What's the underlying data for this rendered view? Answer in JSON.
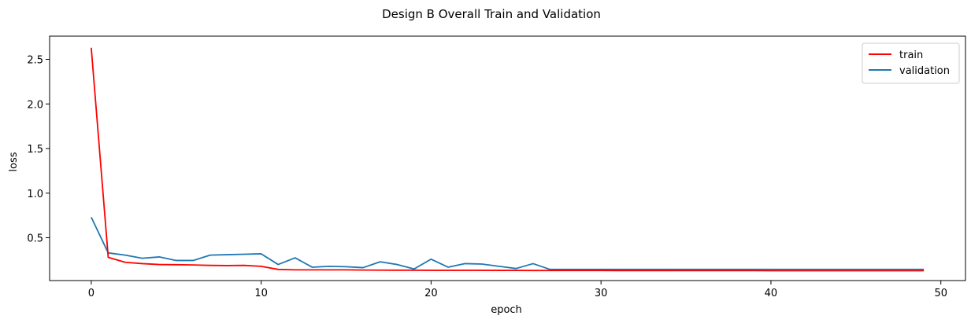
{
  "chart_data": {
    "type": "line",
    "title": "Design B Overall Train and Validation",
    "xlabel": "epoch",
    "ylabel": "loss",
    "xlim": [
      -2.45,
      51.45
    ],
    "ylim": [
      0.02,
      2.76
    ],
    "xticks": [
      0,
      10,
      20,
      30,
      40,
      50
    ],
    "yticks": [
      0.5,
      1.0,
      1.5,
      2.0,
      2.5
    ],
    "xtick_labels": [
      "0",
      "10",
      "20",
      "30",
      "40",
      "50"
    ],
    "ytick_labels": [
      "0.5",
      "1.0",
      "1.5",
      "2.0",
      "2.5"
    ],
    "grid": false,
    "legend_position": "top-right",
    "x": [
      0,
      1,
      2,
      3,
      4,
      5,
      6,
      7,
      8,
      9,
      10,
      11,
      12,
      13,
      14,
      15,
      16,
      17,
      18,
      19,
      20,
      21,
      22,
      23,
      24,
      25,
      26,
      27,
      28,
      29,
      30,
      31,
      32,
      33,
      34,
      35,
      36,
      37,
      38,
      39,
      40,
      41,
      42,
      43,
      44,
      45,
      46,
      47,
      48,
      49
    ],
    "series": [
      {
        "name": "train",
        "color": "#ff0000",
        "values": [
          2.63,
          0.28,
          0.225,
          0.21,
          0.2,
          0.198,
          0.195,
          0.19,
          0.188,
          0.19,
          0.18,
          0.145,
          0.14,
          0.14,
          0.14,
          0.14,
          0.138,
          0.137,
          0.136,
          0.136,
          0.135,
          0.135,
          0.135,
          0.135,
          0.134,
          0.134,
          0.133,
          0.133,
          0.133,
          0.133,
          0.133,
          0.132,
          0.132,
          0.132,
          0.132,
          0.131,
          0.131,
          0.131,
          0.131,
          0.131,
          0.13,
          0.13,
          0.13,
          0.13,
          0.13,
          0.13,
          0.13,
          0.13,
          0.13,
          0.13
        ]
      },
      {
        "name": "validation",
        "color": "#1f77b4",
        "values": [
          0.73,
          0.33,
          0.305,
          0.27,
          0.285,
          0.245,
          0.245,
          0.305,
          0.31,
          0.315,
          0.32,
          0.2,
          0.275,
          0.17,
          0.18,
          0.175,
          0.165,
          0.23,
          0.2,
          0.15,
          0.26,
          0.17,
          0.21,
          0.205,
          0.18,
          0.155,
          0.21,
          0.145,
          0.145,
          0.145,
          0.145,
          0.145,
          0.145,
          0.145,
          0.145,
          0.145,
          0.145,
          0.145,
          0.145,
          0.145,
          0.145,
          0.145,
          0.145,
          0.145,
          0.145,
          0.145,
          0.145,
          0.145,
          0.145,
          0.145
        ]
      }
    ]
  }
}
